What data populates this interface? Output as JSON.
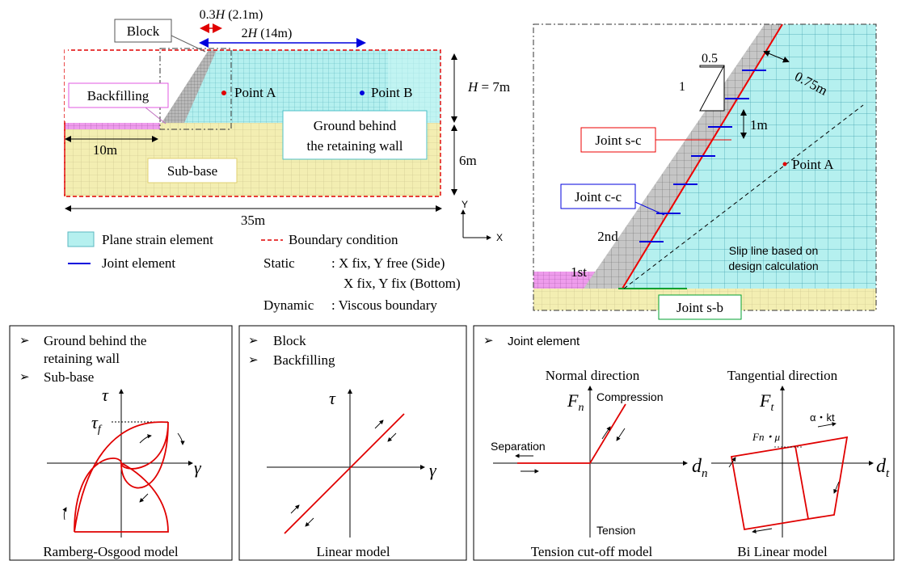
{
  "model": {
    "label_block": "Block",
    "label_backfilling": "Backfilling",
    "label_ground": [
      "Ground behind",
      "the retaining wall"
    ],
    "label_subbase": "Sub-base",
    "label_point_a": "Point A",
    "label_point_b": "Point B",
    "dim_03h": "0.3H (2.1m)",
    "dim_2h": "2H (14m)",
    "dim_h7": "H = 7m",
    "dim_6m": "6m",
    "dim_10m": "10m",
    "dim_35m": "35m",
    "axis_y": "Y",
    "axis_x": "X"
  },
  "legend": {
    "plane_strain": "Plane strain element",
    "boundary": "Boundary condition",
    "joint": "Joint element",
    "static_label": "Static",
    "static_line1": ": X fix, Y free (Side)",
    "static_line2": "X fix, Y fix  (Bottom)",
    "dynamic_label": "Dynamic",
    "dynamic_line": ": Viscous boundary"
  },
  "detail": {
    "slope_h": "0.5",
    "slope_v": "1",
    "thickness": "0.75m",
    "spacing": "1m",
    "joint_sc": "Joint s-c",
    "joint_cc": "Joint c-c",
    "joint_sb": "Joint s-b",
    "point_a": "Point A",
    "layer_2nd": "2nd",
    "layer_1st": "1st",
    "slip_line": [
      "Slip line based on",
      "design calculation"
    ]
  },
  "panels": [
    {
      "bullets": [
        "Ground behind the",
        "retaining wall",
        "Sub-base"
      ],
      "y_axis": "τ",
      "x_axis": "γ",
      "peak": "τ",
      "caption": "Ramberg-Osgood model"
    },
    {
      "bullets": [
        "Block",
        "Backfilling"
      ],
      "y_axis": "τ",
      "x_axis": "γ",
      "caption": "Linear model"
    },
    {
      "bullets": [
        "Joint element"
      ],
      "normal": {
        "title": "Normal direction",
        "y_axis": "F",
        "x_axis": "d",
        "compression": "Compression",
        "separation": "Separation",
        "tension": "Tension",
        "caption": "Tension cut-off model"
      },
      "tangential": {
        "title": "Tangential direction",
        "y_axis": "F",
        "x_axis": "d",
        "friction": "Fn・μ",
        "stiffness": "α・kt",
        "caption": "Bi Linear model"
      }
    }
  ],
  "colors": {
    "ground": "#b5f0ef",
    "subbase": "#f3eeb2",
    "backfill": "#ee9cec",
    "block": "#b9b9b9",
    "joint_blue": "#0000dd",
    "joint_red": "#ee0000",
    "joint_green": "#00a030",
    "curve": "#e00000"
  }
}
